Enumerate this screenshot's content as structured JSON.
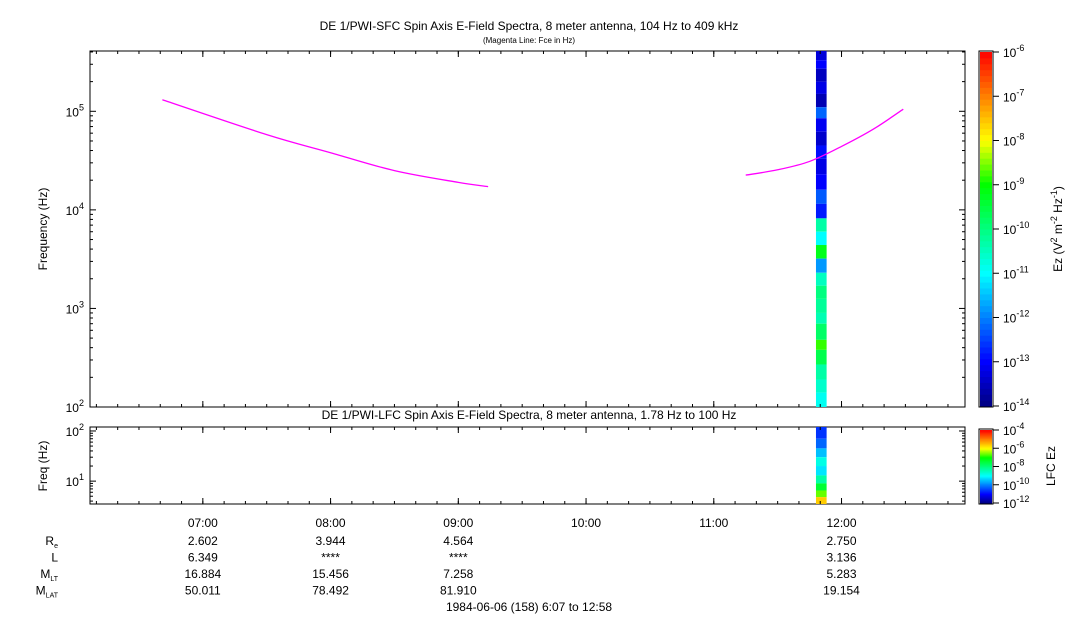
{
  "titles": {
    "main": "DE 1/PWI-SFC  Spin Axis E-Field Spectra, 8 meter antenna, 104 Hz to 409 kHz",
    "subtitle": "(Magenta Line: Fce in Hz)",
    "lower": "DE 1/PWI-LFC  Spin Axis E-Field Spectra, 8 meter antenna, 1.78 Hz to 100 Hz",
    "date": "1984-06-06 (158) 6:07 to 12:58"
  },
  "colors": {
    "fce_line": "#ff00ff",
    "colormap": [
      "#000080",
      "#0000ff",
      "#0080ff",
      "#00ffff",
      "#00ff80",
      "#00ff00",
      "#ffff00",
      "#ff8000",
      "#ff0000"
    ]
  },
  "chart_data": [
    {
      "type": "heatmap",
      "name": "SFC spectrogram",
      "title": "DE 1/PWI-SFC  Spin Axis E-Field Spectra, 8 meter antenna, 104 Hz to 409 kHz",
      "subtitle": "(Magenta Line: Fce in Hz)",
      "ylabel": "Frequency (Hz)",
      "yscale": "log",
      "ylim": [
        100,
        409000
      ],
      "xlim": [
        "06:07",
        "12:58"
      ],
      "yticks": [
        {
          "base": "10",
          "exp": "2",
          "value": 100
        },
        {
          "base": "10",
          "exp": "3",
          "value": 1000
        },
        {
          "base": "10",
          "exp": "4",
          "value": 10000
        },
        {
          "base": "10",
          "exp": "5",
          "value": 100000
        }
      ],
      "colorbar": {
        "label_prefix": "Ez (V",
        "label_sq": "2",
        "label_mid": " m",
        "label_neg2": "-2",
        "label_hz": " Hz",
        "label_neg1": "-1",
        "label_close": ")",
        "scale": "log",
        "range": [
          1e-14,
          1e-06
        ],
        "ticks": [
          {
            "base": "10",
            "exp": "-14"
          },
          {
            "base": "10",
            "exp": "-13"
          },
          {
            "base": "10",
            "exp": "-12"
          },
          {
            "base": "10",
            "exp": "-11"
          },
          {
            "base": "10",
            "exp": "-10"
          },
          {
            "base": "10",
            "exp": "-9"
          },
          {
            "base": "10",
            "exp": "-8"
          },
          {
            "base": "10",
            "exp": "-7"
          },
          {
            "base": "10",
            "exp": "-6"
          }
        ]
      },
      "fce_line": [
        {
          "name": "Fce segment 1",
          "points": [
            [
              "06:41",
              131000
            ],
            [
              "07:30",
              58000
            ],
            [
              "08:00",
              38000
            ],
            [
              "08:30",
              25000
            ],
            [
              "09:00",
              19000
            ],
            [
              "09:14",
              17200
            ]
          ]
        },
        {
          "name": "Fce segment 2",
          "points": [
            [
              "11:15",
              22500
            ],
            [
              "11:30",
              25500
            ],
            [
              "11:45",
              31000
            ],
            [
              "12:00",
              44000
            ],
            [
              "12:15",
              66000
            ],
            [
              "12:29",
              105000
            ]
          ]
        }
      ],
      "data_column": {
        "time_start": "11:48",
        "time_end": "11:53",
        "cells": [
          {
            "fmin": 330000,
            "fmax": 409000,
            "level": -13.3
          },
          {
            "fmin": 270000,
            "fmax": 330000,
            "level": -13.0
          },
          {
            "fmin": 200000,
            "fmax": 270000,
            "level": -13.5
          },
          {
            "fmin": 150000,
            "fmax": 200000,
            "level": -13.2
          },
          {
            "fmin": 110000,
            "fmax": 150000,
            "level": -13.6
          },
          {
            "fmin": 85000,
            "fmax": 110000,
            "level": -12.2
          },
          {
            "fmin": 62000,
            "fmax": 85000,
            "level": -13.1
          },
          {
            "fmin": 45000,
            "fmax": 62000,
            "level": -13.4
          },
          {
            "fmin": 33000,
            "fmax": 45000,
            "level": -12.9
          },
          {
            "fmin": 23000,
            "fmax": 33000,
            "level": -13.2
          },
          {
            "fmin": 16000,
            "fmax": 23000,
            "level": -13.0
          },
          {
            "fmin": 11500,
            "fmax": 16000,
            "level": -12.3
          },
          {
            "fmin": 8200,
            "fmax": 11500,
            "level": -12.8
          },
          {
            "fmin": 6000,
            "fmax": 8200,
            "level": -10.3
          },
          {
            "fmin": 4400,
            "fmax": 6000,
            "level": -11.0
          },
          {
            "fmin": 3200,
            "fmax": 4400,
            "level": -9.2
          },
          {
            "fmin": 2300,
            "fmax": 3200,
            "level": -11.8
          },
          {
            "fmin": 1700,
            "fmax": 2300,
            "level": -10.5
          },
          {
            "fmin": 1250,
            "fmax": 1700,
            "level": -10.0
          },
          {
            "fmin": 900,
            "fmax": 1250,
            "level": -10.2
          },
          {
            "fmin": 700,
            "fmax": 900,
            "level": -10.4
          },
          {
            "fmin": 480,
            "fmax": 700,
            "level": -9.8
          },
          {
            "fmin": 380,
            "fmax": 480,
            "level": -8.8
          },
          {
            "fmin": 270,
            "fmax": 380,
            "level": -9.6
          },
          {
            "fmin": 190,
            "fmax": 270,
            "level": -10.3
          },
          {
            "fmin": 140,
            "fmax": 190,
            "level": -10.6
          },
          {
            "fmin": 100,
            "fmax": 140,
            "level": -10.9
          }
        ]
      }
    },
    {
      "type": "heatmap",
      "name": "LFC spectrogram",
      "title": "DE 1/PWI-LFC  Spin Axis E-Field Spectra, 8 meter antenna, 1.78 Hz to 100 Hz",
      "ylabel": "Freq (Hz)",
      "yscale": "log",
      "ylim": [
        3.5,
        120
      ],
      "xlim": [
        "06:07",
        "12:58"
      ],
      "yticks": [
        {
          "base": "10",
          "exp": "1",
          "value": 10
        },
        {
          "base": "10",
          "exp": "2",
          "value": 100
        }
      ],
      "colorbar": {
        "label": "LFC Ez",
        "scale": "log",
        "range": [
          1e-12,
          0.0001
        ],
        "ticks": [
          {
            "base": "10",
            "exp": "-12"
          },
          {
            "base": "10",
            "exp": "-10"
          },
          {
            "base": "10",
            "exp": "-8"
          },
          {
            "base": "10",
            "exp": "-6"
          },
          {
            "base": "10",
            "exp": "-4"
          }
        ]
      },
      "data_column": {
        "time_start": "11:48",
        "time_end": "11:53",
        "cells": [
          {
            "fmin": 70,
            "fmax": 120,
            "level": -10.6
          },
          {
            "fmin": 45,
            "fmax": 70,
            "level": -10.2
          },
          {
            "fmin": 30,
            "fmax": 45,
            "level": -9.5
          },
          {
            "fmin": 20,
            "fmax": 30,
            "level": -8.8
          },
          {
            "fmin": 13,
            "fmax": 20,
            "level": -9.2
          },
          {
            "fmin": 9,
            "fmax": 13,
            "level": -8.3
          },
          {
            "fmin": 6.5,
            "fmax": 9,
            "level": -7.4
          },
          {
            "fmin": 4.8,
            "fmax": 6.5,
            "level": -6.6
          },
          {
            "fmin": 3.5,
            "fmax": 4.8,
            "level": -5.6
          }
        ]
      }
    }
  ],
  "time_axis": {
    "labels": [
      "07:00",
      "08:00",
      "09:00",
      "10:00",
      "11:00",
      "12:00"
    ],
    "tick_times": [
      "07:00",
      "08:00",
      "09:00",
      "10:00",
      "11:00",
      "12:00"
    ],
    "range": [
      "06:07",
      "12:58"
    ]
  },
  "ephemeris": {
    "rows": [
      {
        "label": "R",
        "sub": "e",
        "values": [
          "2.602",
          "3.944",
          "4.564",
          "",
          "",
          "2.750"
        ]
      },
      {
        "label": "L",
        "sub": "",
        "values": [
          "6.349",
          "****",
          "****",
          "",
          "",
          "3.136"
        ]
      },
      {
        "label": "M",
        "sub": "LT",
        "values": [
          "16.884",
          "15.456",
          "7.258",
          "",
          "",
          "5.283"
        ]
      },
      {
        "label": "M",
        "sub": "LAT",
        "values": [
          "50.011",
          "78.492",
          "81.910",
          "",
          "",
          "19.154"
        ]
      }
    ]
  }
}
